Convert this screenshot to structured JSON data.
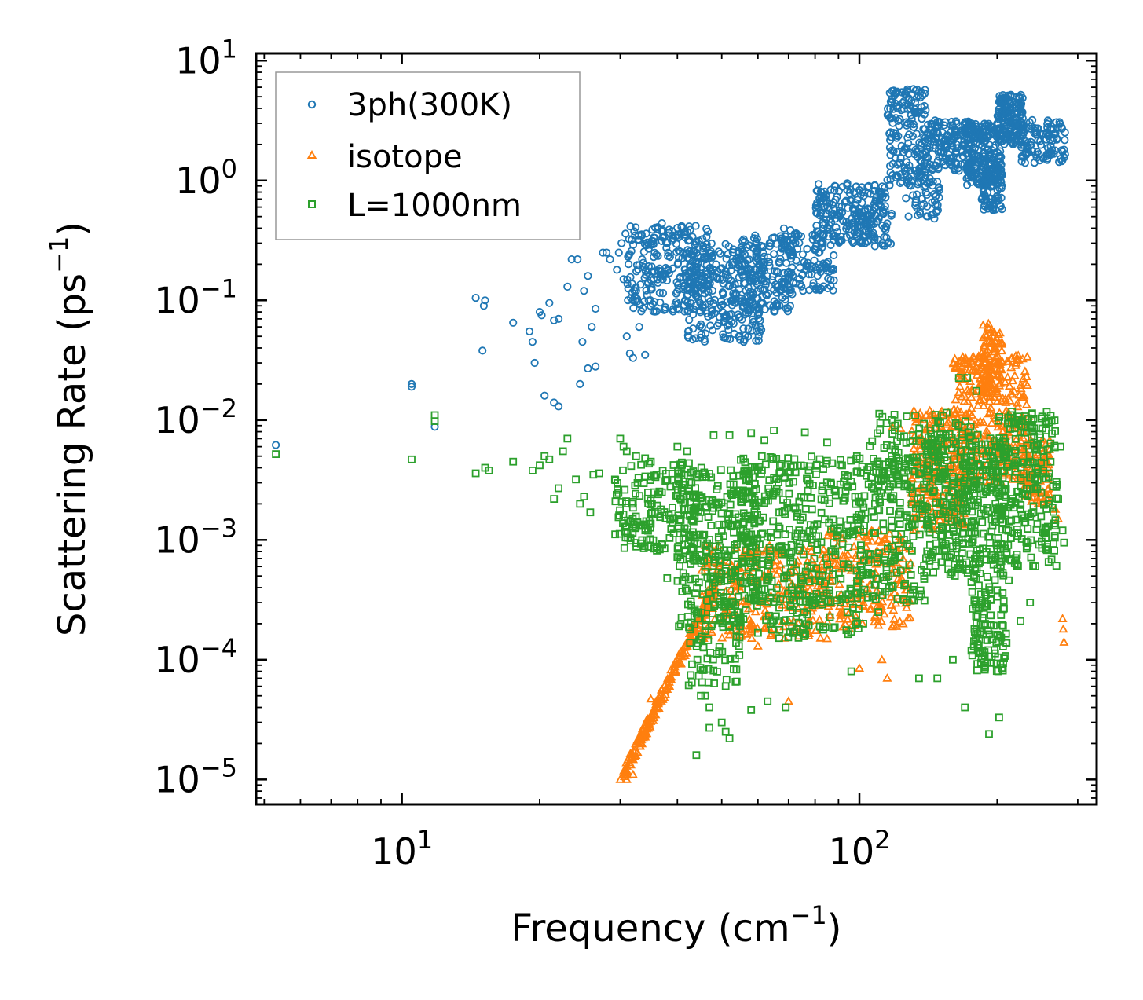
{
  "chart_data": {
    "type": "scatter",
    "xscale": "log",
    "yscale": "log",
    "xlim": [
      4.8,
      330
    ],
    "ylim": [
      6.2e-06,
      11.5
    ],
    "xlabel": {
      "text": "Frequency (cm",
      "sup": "−1",
      "close": ")"
    },
    "ylabel": {
      "text": "Scattering Rate (ps",
      "sup": "−1",
      "close": ")"
    },
    "x_ticks": [
      {
        "value": 10,
        "base": "10",
        "exp": "1"
      },
      {
        "value": 100,
        "base": "10",
        "exp": "2"
      }
    ],
    "y_ticks": [
      {
        "value": 10,
        "base": "10",
        "exp": "1"
      },
      {
        "value": 1,
        "base": "10",
        "exp": "0"
      },
      {
        "value": 0.1,
        "base": "10",
        "exp": "−1"
      },
      {
        "value": 0.01,
        "base": "10",
        "exp": "−2"
      },
      {
        "value": 0.001,
        "base": "10",
        "exp": "−3"
      },
      {
        "value": 0.0001,
        "base": "10",
        "exp": "−4"
      },
      {
        "value": 1e-05,
        "base": "10",
        "exp": "−5"
      }
    ],
    "legend_position": "top-left",
    "series": [
      {
        "name": "3ph(300K)",
        "marker": "circle",
        "color": "#1f77b4",
        "points": [
          [
            5.3,
            0.0062
          ],
          [
            10.5,
            0.019
          ],
          [
            10.5,
            0.02
          ],
          [
            11.8,
            0.0088
          ],
          [
            14.5,
            0.105
          ],
          [
            15,
            0.038
          ],
          [
            15.2,
            0.1
          ],
          [
            15.1,
            0.09
          ],
          [
            17.5,
            0.065
          ],
          [
            19,
            0.055
          ],
          [
            19.3,
            0.045
          ],
          [
            19.5,
            0.03
          ],
          [
            20,
            0.08
          ],
          [
            20.2,
            0.075
          ],
          [
            21,
            0.095
          ],
          [
            21.5,
            0.068
          ],
          [
            22,
            0.07
          ],
          [
            23,
            0.13
          ],
          [
            23.5,
            0.22
          ],
          [
            24.2,
            0.22
          ],
          [
            24.8,
            0.045
          ],
          [
            25,
            0.12
          ],
          [
            25.5,
            0.16
          ],
          [
            26,
            0.06
          ],
          [
            26.5,
            0.085
          ],
          [
            27.5,
            0.25
          ],
          [
            28,
            0.25
          ],
          [
            28.5,
            0.22
          ],
          [
            29.5,
            0.18
          ],
          [
            30.5,
            0.15
          ],
          [
            31,
            0.05
          ],
          [
            31.5,
            0.036
          ],
          [
            32,
            0.033
          ],
          [
            32.5,
            0.12
          ],
          [
            33,
            0.06
          ],
          [
            34,
            0.035
          ],
          [
            35,
            0.29
          ],
          [
            35.5,
            0.23
          ],
          [
            36,
            0.24
          ],
          [
            37,
            0.44
          ],
          [
            38,
            0.3
          ],
          [
            20.5,
            0.016
          ],
          [
            21.5,
            0.014
          ],
          [
            22,
            0.013
          ],
          [
            24.5,
            0.02
          ],
          [
            25.5,
            0.027
          ],
          [
            26.5,
            0.028
          ],
          [
            29.8,
            0.25
          ],
          [
            30.2,
            0.3
          ],
          [
            30.8,
            0.36
          ],
          [
            31.8,
            0.32
          ],
          [
            33.5,
            0.22
          ],
          [
            34.5,
            0.17
          ]
        ],
        "bands": [
          {
            "x0": 31,
            "x1": 48,
            "ylo": 0.08,
            "yhi": 0.42,
            "n": 260
          },
          {
            "x0": 42,
            "x1": 62,
            "ylo": 0.045,
            "yhi": 0.3,
            "n": 260
          },
          {
            "x0": 55,
            "x1": 72,
            "ylo": 0.08,
            "yhi": 0.35,
            "n": 150
          },
          {
            "x0": 65,
            "x1": 88,
            "ylo": 0.12,
            "yhi": 0.4,
            "n": 130
          },
          {
            "x0": 80,
            "x1": 115,
            "ylo": 0.3,
            "yhi": 0.95,
            "n": 200
          },
          {
            "x0": 98,
            "x1": 118,
            "ylo": 0.28,
            "yhi": 0.6,
            "n": 50
          },
          {
            "x0": 115,
            "x1": 140,
            "ylo": 0.9,
            "yhi": 5.8,
            "n": 170
          },
          {
            "x0": 125,
            "x1": 150,
            "ylo": 0.45,
            "yhi": 1.5,
            "n": 60
          },
          {
            "x0": 140,
            "x1": 175,
            "ylo": 1.2,
            "yhi": 3.2,
            "n": 150
          },
          {
            "x0": 170,
            "x1": 205,
            "ylo": 0.9,
            "yhi": 3.0,
            "n": 220
          },
          {
            "x0": 185,
            "x1": 205,
            "ylo": 0.55,
            "yhi": 1.3,
            "n": 80
          },
          {
            "x0": 200,
            "x1": 228,
            "ylo": 2.0,
            "yhi": 5.2,
            "n": 160
          },
          {
            "x0": 225,
            "x1": 282,
            "ylo": 1.4,
            "yhi": 3.2,
            "n": 110
          }
        ]
      },
      {
        "name": "isotope",
        "marker": "triangle",
        "color": "#ff7f0e",
        "points": [
          [
            30,
            1e-05
          ],
          [
            31,
            1e-05
          ],
          [
            32,
            1.1e-05
          ],
          [
            35,
            4.7e-05
          ],
          [
            118,
            0.0087
          ],
          [
            123,
            0.0085
          ],
          [
            137,
            0.0035
          ],
          [
            143,
            0.0058
          ],
          [
            150,
            0.008
          ],
          [
            158,
            0.01
          ],
          [
            268,
            0.0018
          ],
          [
            272,
            0.0015
          ],
          [
            278,
            0.00022
          ],
          [
            279,
            0.00018
          ],
          [
            280,
            0.00014
          ],
          [
            115,
            7e-05
          ],
          [
            70,
            4.5e-05
          ],
          [
            100,
            8.5e-05
          ],
          [
            112,
            0.0001
          ],
          [
            60,
            0.00013
          ],
          [
            85,
            0.00015
          ]
        ],
        "bands": [
          {
            "kind": "ramp",
            "x0": 30.5,
            "x1": 49,
            "y0": 1.1e-05,
            "y1": 0.00045,
            "spread": 0.12,
            "n": 220
          },
          {
            "x0": 45,
            "x1": 85,
            "ylo": 0.00015,
            "yhi": 0.0009,
            "n": 260
          },
          {
            "x0": 85,
            "x1": 130,
            "ylo": 0.00018,
            "yhi": 0.0012,
            "n": 180
          },
          {
            "x0": 130,
            "x1": 170,
            "ylo": 0.0012,
            "yhi": 0.012,
            "n": 220
          },
          {
            "x0": 160,
            "x1": 235,
            "ylo": 0.003,
            "yhi": 0.035,
            "n": 320
          },
          {
            "x0": 185,
            "x1": 205,
            "ylo": 0.015,
            "yhi": 0.065,
            "n": 90
          },
          {
            "x0": 230,
            "x1": 262,
            "ylo": 0.002,
            "yhi": 0.007,
            "n": 90
          }
        ]
      },
      {
        "name": "L=1000nm",
        "marker": "square",
        "color": "#2ca02c",
        "points": [
          [
            5.3,
            0.0052
          ],
          [
            10.5,
            0.0047
          ],
          [
            11.8,
            0.011
          ],
          [
            11.8,
            0.0098
          ],
          [
            14.5,
            0.0036
          ],
          [
            15.2,
            0.004
          ],
          [
            15.5,
            0.0038
          ],
          [
            17.5,
            0.0045
          ],
          [
            19.3,
            0.0038
          ],
          [
            20,
            0.0042
          ],
          [
            20.5,
            0.005
          ],
          [
            21,
            0.0047
          ],
          [
            21.5,
            0.0022
          ],
          [
            22,
            0.0027
          ],
          [
            22.5,
            0.0055
          ],
          [
            23,
            0.007
          ],
          [
            24,
            0.0032
          ],
          [
            24.5,
            0.002
          ],
          [
            25,
            0.0023
          ],
          [
            25.8,
            0.0017
          ],
          [
            26.2,
            0.0035
          ],
          [
            27,
            0.0036
          ],
          [
            30,
            0.007
          ],
          [
            30.5,
            0.006
          ],
          [
            31,
            0.0055
          ],
          [
            32.5,
            0.005
          ],
          [
            34,
            0.0048
          ],
          [
            35,
            0.0045
          ],
          [
            36,
            0.0035
          ],
          [
            38,
            0.00048
          ],
          [
            40,
            0.006
          ],
          [
            42,
            0.0055
          ],
          [
            48,
            0.0075
          ],
          [
            52,
            0.0075
          ],
          [
            58,
            0.0078
          ],
          [
            62,
            0.0068
          ],
          [
            65,
            0.0082
          ],
          [
            40,
            0.00072
          ],
          [
            45,
            5e-05
          ],
          [
            46,
            5e-05
          ],
          [
            47,
            4e-05
          ],
          [
            50,
            3e-05
          ],
          [
            51,
            2.5e-05
          ],
          [
            52,
            2.2e-05
          ],
          [
            47,
            2.7e-05
          ],
          [
            44,
            1.6e-05
          ],
          [
            58,
            3.8e-05
          ],
          [
            63,
            4.5e-05
          ],
          [
            69,
            4e-05
          ],
          [
            76,
            0.0079
          ],
          [
            85,
            0.0065
          ],
          [
            96,
            8e-05
          ],
          [
            108,
            0.00042
          ],
          [
            110,
            0.00025
          ],
          [
            135,
            7e-05
          ],
          [
            148,
            7e-05
          ],
          [
            160,
            0.0001
          ],
          [
            170,
            4e-05
          ],
          [
            182,
            0.00027
          ],
          [
            192,
            2.4e-05
          ],
          [
            202,
            3.3e-05
          ],
          [
            212,
            0.00046
          ],
          [
            225,
            0.00021
          ],
          [
            236,
            0.0003
          ],
          [
            260,
            0.0036
          ],
          [
            265,
            0.0028
          ],
          [
            272,
            0.0022
          ],
          [
            280,
            0.00095
          ],
          [
            278,
            0.0012
          ],
          [
            275,
            0.006
          ],
          [
            102,
            0.0002
          ],
          [
            127,
            0.0003
          ],
          [
            165,
            0.0225
          ],
          [
            172,
            0.0225
          ],
          [
            180,
            0.0175
          ],
          [
            155,
            0.0115
          ],
          [
            143,
            0.0082
          ]
        ],
        "bands": [
          {
            "x0": 29,
            "x1": 44,
            "ylo": 0.0008,
            "yhi": 0.0045,
            "n": 170
          },
          {
            "x0": 40,
            "x1": 60,
            "ylo": 0.00018,
            "yhi": 0.004,
            "n": 300
          },
          {
            "x0": 42,
            "x1": 55,
            "ylo": 6e-05,
            "yhi": 0.0003,
            "n": 70
          },
          {
            "x0": 55,
            "x1": 100,
            "ylo": 0.0003,
            "yhi": 0.005,
            "n": 360
          },
          {
            "x0": 60,
            "x1": 100,
            "ylo": 0.00015,
            "yhi": 0.0004,
            "n": 80
          },
          {
            "x0": 100,
            "x1": 140,
            "ylo": 0.0003,
            "yhi": 0.005,
            "n": 200
          },
          {
            "x0": 140,
            "x1": 210,
            "ylo": 0.0005,
            "yhi": 0.008,
            "n": 380
          },
          {
            "x0": 175,
            "x1": 210,
            "ylo": 8e-05,
            "yhi": 0.0005,
            "n": 110
          },
          {
            "x0": 200,
            "x1": 270,
            "ylo": 0.0006,
            "yhi": 0.012,
            "n": 230
          },
          {
            "x0": 105,
            "x1": 180,
            "ylo": 0.003,
            "yhi": 0.012,
            "n": 90
          }
        ]
      }
    ]
  }
}
